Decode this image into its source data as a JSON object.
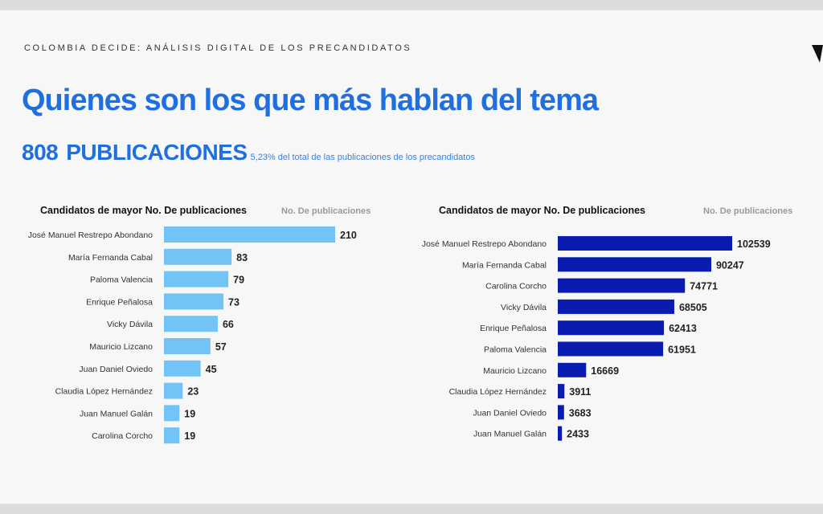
{
  "kicker": "COLOMBIA DECIDE: ANÁLISIS DIGITAL DE LOS PRECANDIDATOS",
  "title": "Quienes son los que más hablan del tema",
  "summary": {
    "count": "808",
    "label": "PUBLICACIONES",
    "note": "5,23% del total de las publicaciones de los precandidatos"
  },
  "chart_data": [
    {
      "type": "bar",
      "orientation": "horizontal",
      "title": "Candidatos de mayor No. De publicaciones",
      "value_label": "No. De publicaciones",
      "color": "#72c4f6",
      "categories": [
        "José Manuel Restrepo Abondano",
        "María Fernanda Cabal",
        "Paloma Valencia",
        "Enrique Peñalosa",
        "Vicky Dávila",
        "Mauricio Lizcano",
        "Juan Daniel Oviedo",
        "Claudia López Hernández",
        "Juan Manuel Galán",
        "Carolina Corcho"
      ],
      "values": [
        210,
        83,
        79,
        73,
        66,
        57,
        45,
        23,
        19,
        19
      ]
    },
    {
      "type": "bar",
      "orientation": "horizontal",
      "title": "Candidatos de mayor No. De publicaciones",
      "value_label": "No. De publicaciones",
      "color": "#0a1cb0",
      "categories": [
        "José Manuel Restrepo Abondano",
        "María Fernanda Cabal",
        "Carolina Corcho",
        "Vicky Dávila",
        "Enrique Peñalosa",
        "Paloma Valencia",
        "Mauricio Lizcano",
        "Claudia López Hernández",
        "Juan Daniel Oviedo",
        "Juan Manuel Galán"
      ],
      "values": [
        102539,
        90247,
        74771,
        68505,
        62413,
        61951,
        16669,
        3911,
        3683,
        2433
      ]
    }
  ]
}
